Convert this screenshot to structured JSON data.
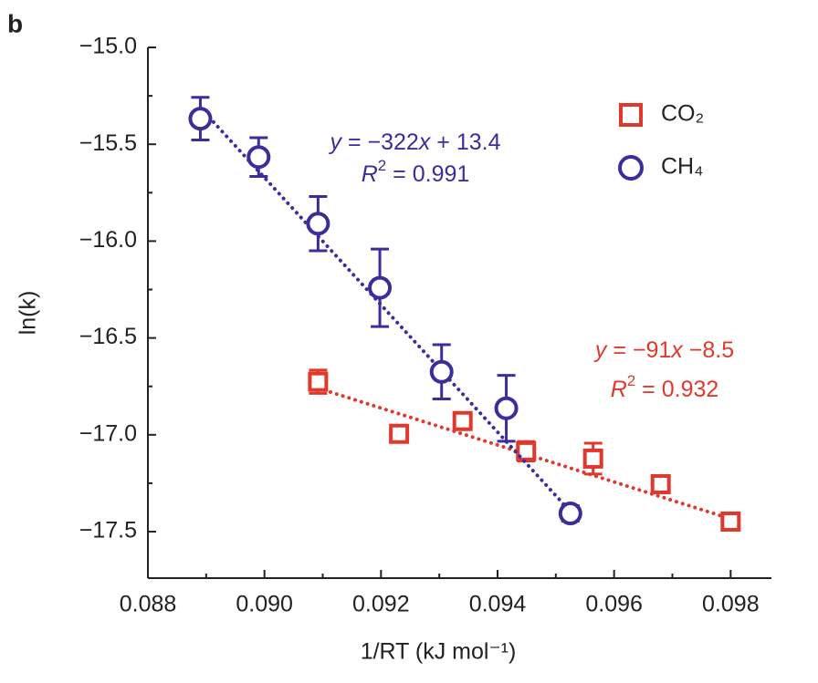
{
  "chart_data": {
    "type": "scatter",
    "panel_label": "b",
    "x_label": "1/RT (kJ mol⁻¹)",
    "y_label": "ln(k)",
    "xlim": [
      0.088,
      0.0987
    ],
    "ylim": [
      -17.74,
      -15.0
    ],
    "xticks": [
      {
        "value": 0.088,
        "label": "0.088"
      },
      {
        "value": 0.09,
        "label": "0.090"
      },
      {
        "value": 0.092,
        "label": "0.092"
      },
      {
        "value": 0.094,
        "label": "0.094"
      },
      {
        "value": 0.096,
        "label": "0.096"
      },
      {
        "value": 0.098,
        "label": "0.098"
      }
    ],
    "yticks": [
      {
        "value": -15.0,
        "label": "−15.0"
      },
      {
        "value": -15.5,
        "label": "−15.5"
      },
      {
        "value": -16.0,
        "label": "−16.0"
      },
      {
        "value": -16.5,
        "label": "−16.5"
      },
      {
        "value": -17.0,
        "label": "−17.0"
      },
      {
        "value": -17.5,
        "label": "−17.5"
      }
    ],
    "x_minor_ticks": [
      0.089,
      0.091,
      0.093,
      0.095,
      0.097
    ],
    "y_minor_ticks": [
      -15.25,
      -15.75,
      -16.25,
      -16.75,
      -17.25
    ],
    "series": [
      {
        "name": "CO₂",
        "color": "#e0392b",
        "marker": "square",
        "x": [
          0.09092,
          0.09231,
          0.0934,
          0.09449,
          0.09564,
          0.0968,
          0.098
        ],
        "values": [
          -16.726,
          -16.995,
          -16.929,
          -17.085,
          -17.123,
          -17.255,
          -17.448
        ],
        "errors": [
          0.06,
          0.02,
          0.02,
          0.05,
          0.08,
          0.04,
          0.03
        ],
        "fit": {
          "x": [
            0.09092,
            0.098
          ],
          "values": [
            -16.759,
            -17.434
          ]
        },
        "equation": [
          "y",
          " = −91",
          "x",
          " −8.5"
        ],
        "r_squared": [
          "R",
          "2",
          " = 0.932"
        ]
      },
      {
        "name": "CH₄",
        "color": "#3a2e9c",
        "marker": "circle",
        "x": [
          0.0889,
          0.0899,
          0.09092,
          0.09198,
          0.09304,
          0.09415,
          0.09525
        ],
        "values": [
          -15.368,
          -15.566,
          -15.91,
          -16.241,
          -16.675,
          -16.863,
          -17.406
        ],
        "errors": [
          0.11,
          0.1,
          0.14,
          0.2,
          0.14,
          0.17,
          0.04
        ],
        "fit": {
          "x": [
            0.0889,
            0.09525
          ],
          "values": [
            -15.311,
            -17.396
          ]
        },
        "equation": [
          "y",
          " = −322",
          "x",
          " + 13.4"
        ],
        "r_squared": [
          "R",
          "2",
          " = 0.991"
        ]
      }
    ]
  }
}
